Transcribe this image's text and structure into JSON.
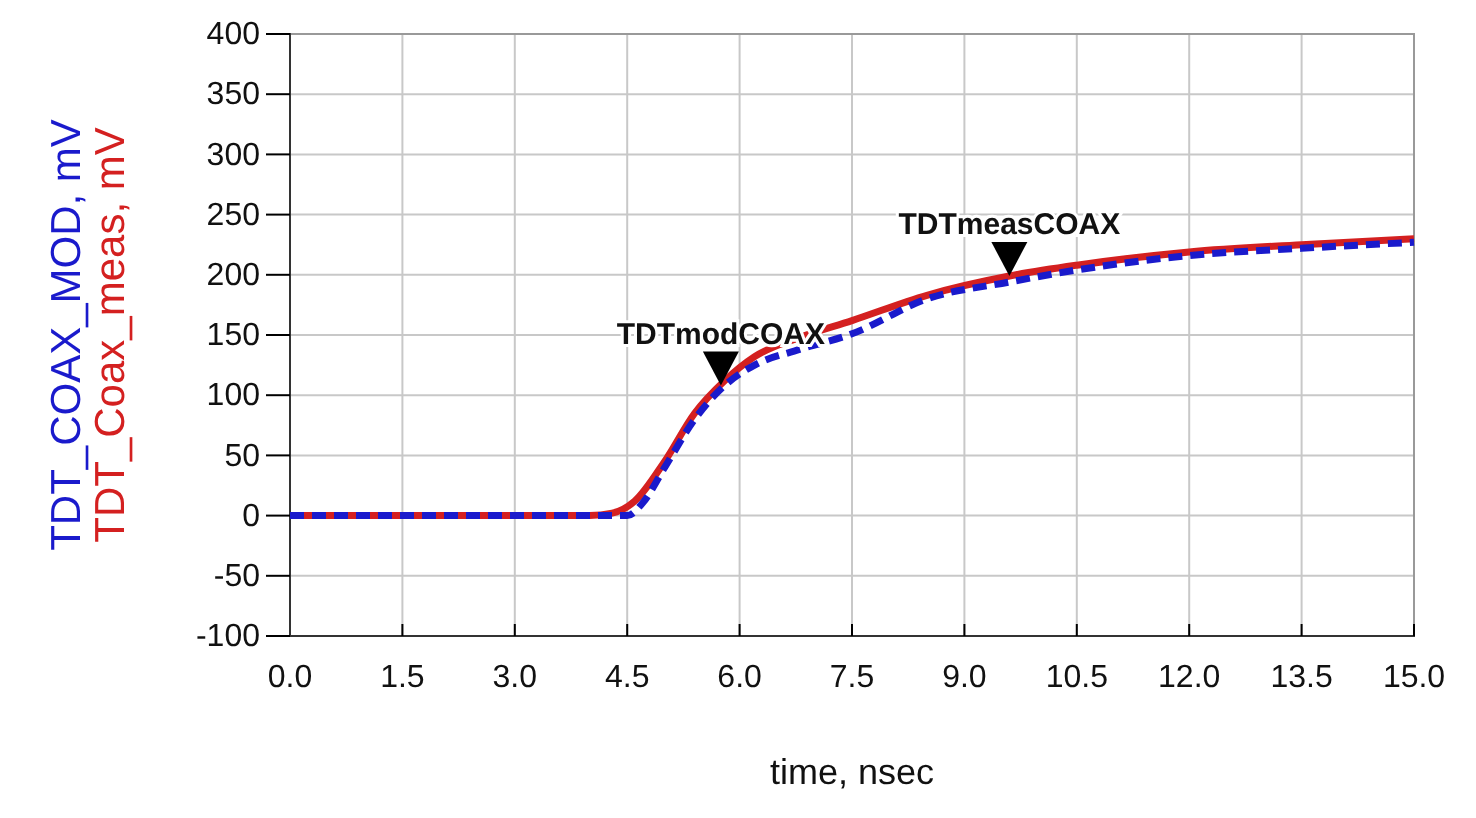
{
  "chart_data": {
    "type": "line",
    "xlabel": "time, nsec",
    "series": [
      {
        "name": "TDT_Coax_meas, mV",
        "color": "#d42020",
        "line_style": "solid",
        "x": [
          0,
          4.0,
          4.3,
          4.6,
          5.0,
          5.4,
          5.8,
          6.2,
          6.8,
          7.5,
          8.5,
          9.6,
          10.5,
          12,
          13.5,
          15
        ],
        "values": [
          0,
          0,
          2,
          12,
          45,
          85,
          112,
          132,
          148,
          162,
          183,
          199,
          208,
          219,
          225,
          230
        ]
      },
      {
        "name": "TDT_COAX_MOD, mV",
        "color": "#1a1acc",
        "line_style": "dashed",
        "x": [
          0,
          4.5,
          4.7,
          5.0,
          5.4,
          5.8,
          6.2,
          6.8,
          7.5,
          8.5,
          9.6,
          10.5,
          12,
          13.5,
          15
        ],
        "values": [
          0,
          0,
          10,
          40,
          80,
          108,
          125,
          138,
          151,
          180,
          194,
          204,
          216,
          222,
          227
        ]
      }
    ],
    "xlim": [
      0,
      15
    ],
    "ylim": [
      -100,
      400
    ],
    "xticks": [
      {
        "value": 0,
        "label": "0.0"
      },
      1.5,
      {
        "value": 3,
        "label": "3.0"
      },
      4.5,
      {
        "value": 6,
        "label": "6.0"
      },
      7.5,
      {
        "value": 9,
        "label": "9.0"
      },
      10.5,
      {
        "value": 12,
        "label": "12.0"
      },
      13.5,
      {
        "value": 15,
        "label": "15.0"
      }
    ],
    "yticks": [
      -100,
      -50,
      0,
      50,
      100,
      150,
      200,
      250,
      300,
      350,
      400
    ],
    "grid": true,
    "marker": "none",
    "annotations": [
      {
        "text": "TDTmodCOAX",
        "x": 5.75,
        "y": 108
      },
      {
        "text": "TDTmeasCOAX",
        "x": 9.6,
        "y": 199
      }
    ]
  }
}
